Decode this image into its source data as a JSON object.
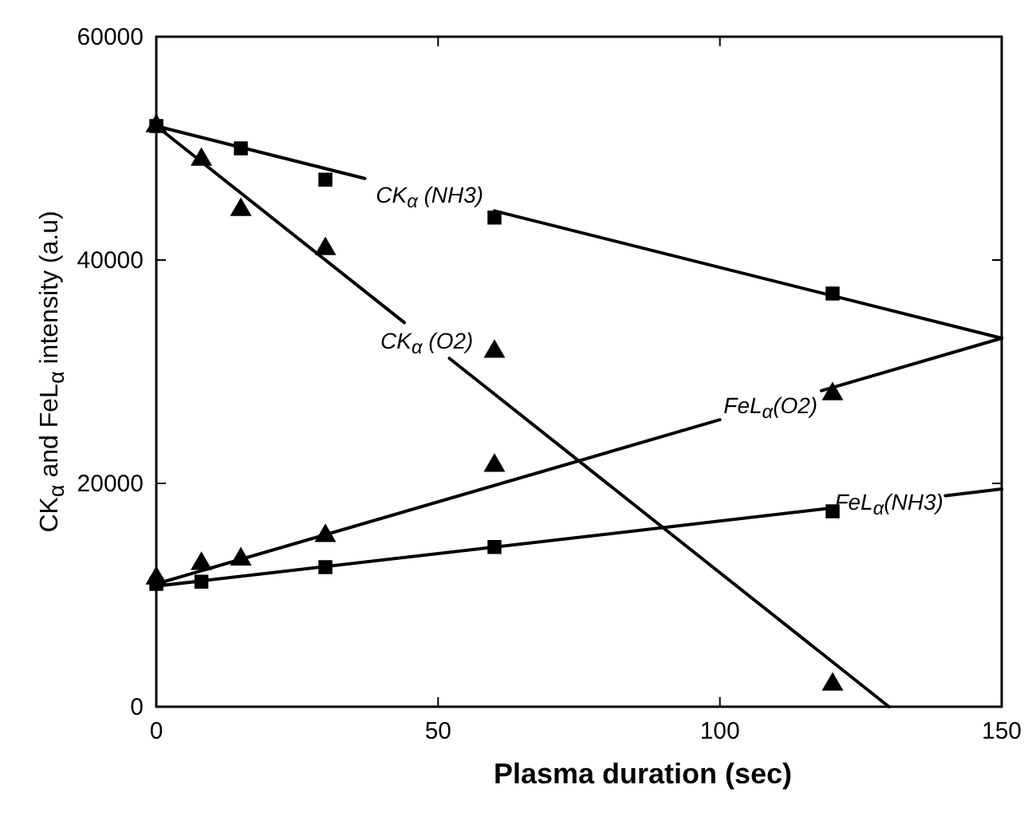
{
  "chart_data": {
    "type": "scatter",
    "xlabel": "Plasma duration (sec)",
    "ylabel": "CK$_{α}$ and FeL$_{α}$ intensity (a.u)",
    "xlim": [
      0,
      150
    ],
    "ylim": [
      0,
      60000
    ],
    "xticks": [
      0,
      50,
      100,
      150
    ],
    "yticks": [
      0,
      20000,
      40000,
      60000
    ],
    "grid": false,
    "series": [
      {
        "marker": "square",
        "color": "#000000",
        "x": [
          0,
          15,
          30,
          60,
          120
        ],
        "values": [
          52000,
          50000,
          47200,
          43800,
          37000
        ]
      },
      {
        "marker": "triangle",
        "color": "#000000",
        "x": [
          0,
          8,
          15,
          30,
          60,
          120
        ],
        "values": [
          52000,
          49000,
          44500,
          41000,
          31800,
          2000
        ]
      },
      {
        "marker": "triangle",
        "color": "#000000",
        "x": [
          0,
          8,
          15,
          30,
          60,
          120
        ],
        "values": [
          11500,
          12800,
          13200,
          15300,
          21600,
          28000
        ]
      },
      {
        "marker": "square",
        "color": "#000000",
        "x": [
          0,
          8,
          30,
          60,
          120
        ],
        "values": [
          11000,
          11200,
          12500,
          14300,
          17500
        ]
      },
      {
        "type": "line",
        "name": "CK$_{α}$ (NH3)",
        "color": "#000000",
        "x": [
          0,
          37,
          48,
          60,
          150
        ],
        "values": [
          52000,
          47300,
          null,
          44400,
          33000
        ]
      },
      {
        "type": "line",
        "name": "CK$_{α}$ (O2)",
        "color": "#000000",
        "x": [
          0,
          44,
          48,
          52,
          130
        ],
        "values": [
          52000,
          34400,
          null,
          31200,
          0
        ]
      },
      {
        "type": "line",
        "name": "FeL$_{α}$(O2)",
        "color": "#000000",
        "x": [
          0,
          100,
          110,
          118,
          150
        ],
        "values": [
          11000,
          25700,
          null,
          28300,
          33000
        ]
      },
      {
        "type": "line",
        "name": "FeL$_{α}$(NH3)",
        "color": "#000000",
        "x": [
          0,
          120,
          130,
          140,
          150
        ],
        "values": [
          10800,
          17800,
          null,
          18900,
          19500
        ]
      }
    ]
  }
}
